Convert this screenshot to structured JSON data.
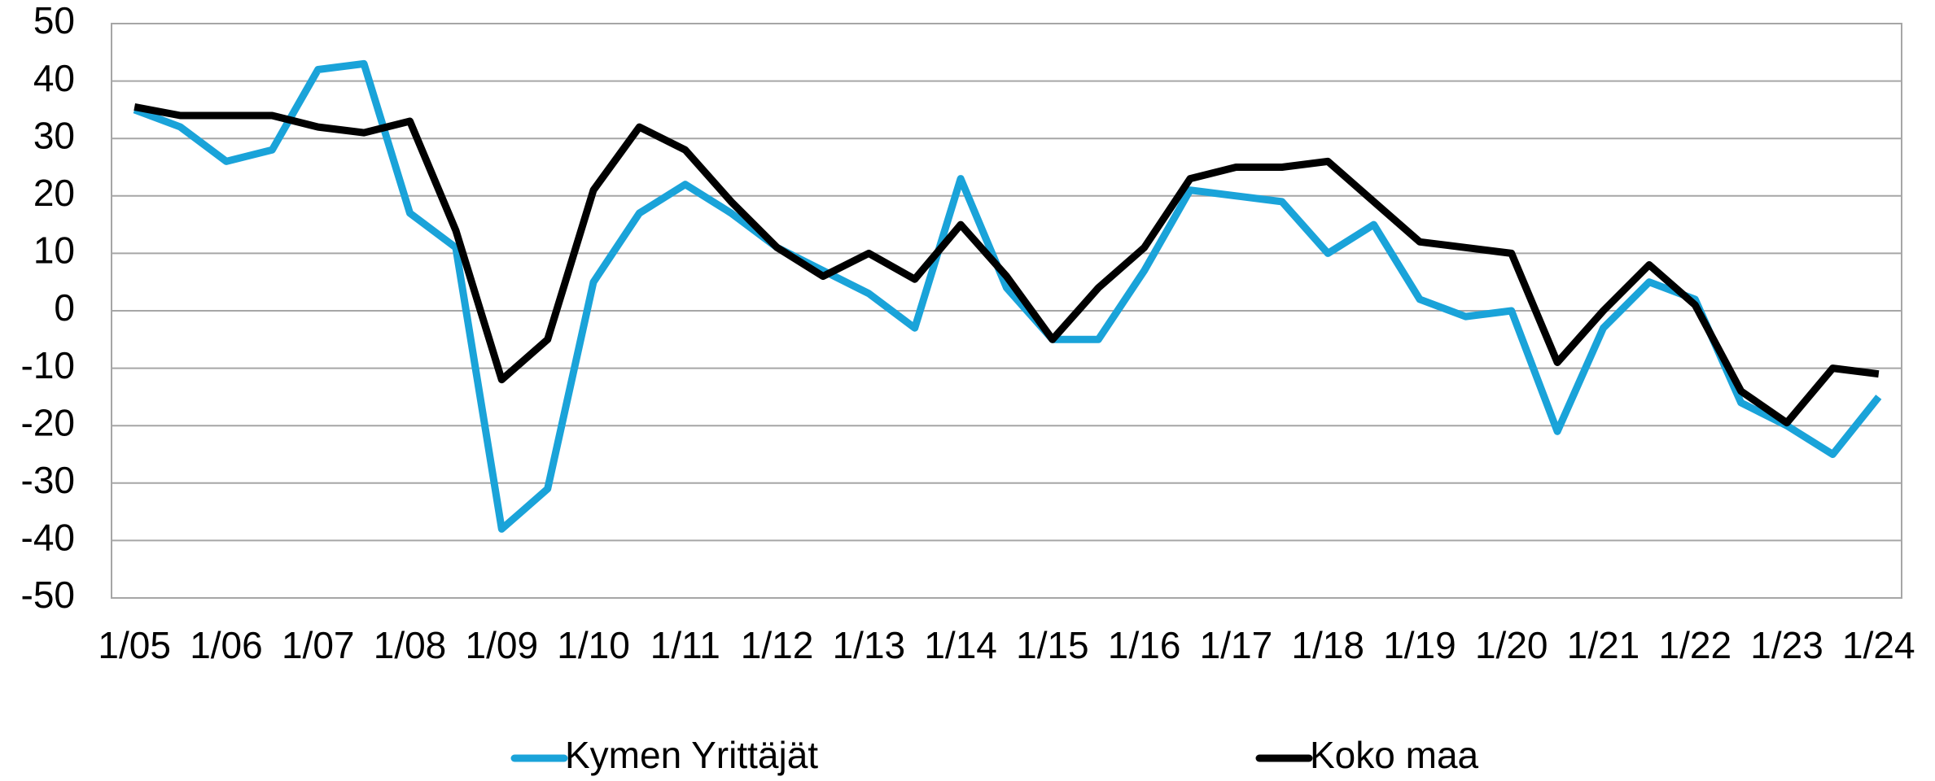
{
  "chart_data": {
    "type": "line",
    "categories": [
      "1/05",
      null,
      "1/06",
      null,
      "1/07",
      null,
      "1/08",
      null,
      "1/09",
      null,
      "1/10",
      null,
      "1/11",
      null,
      "1/12",
      null,
      "1/13",
      null,
      "1/14",
      null,
      "1/15",
      null,
      "1/16",
      null,
      "1/17",
      null,
      "1/18",
      null,
      "1/19",
      null,
      "1/20",
      null,
      "1/21",
      null,
      "1/22",
      null,
      "1/23",
      null,
      "1/24"
    ],
    "series": [
      {
        "name": "Kymen Yrittäjät",
        "color": "#1aa3d9",
        "values": [
          35,
          32,
          26,
          28,
          42,
          43,
          17,
          11,
          -38,
          -31,
          5,
          17,
          22,
          17,
          11,
          7,
          3,
          -3,
          23,
          4,
          -5,
          -5,
          7,
          21,
          20,
          19,
          10,
          15,
          2,
          -1,
          0,
          -21,
          -3,
          5,
          2,
          -16,
          -20,
          -25,
          -15
        ]
      },
      {
        "name": "Koko maa",
        "color": "#000000",
        "values": [
          35.5,
          34,
          34,
          34,
          32,
          31,
          33,
          14,
          -12,
          -5,
          21,
          32,
          28,
          19,
          11,
          6,
          10,
          5.5,
          15,
          6,
          -5,
          4,
          11,
          23,
          25,
          25,
          26,
          19,
          12,
          11,
          10,
          -9,
          0,
          8,
          1,
          -14,
          -19.5,
          -10,
          -11
        ]
      }
    ],
    "ylim": [
      -50,
      50
    ],
    "yticks": [
      -50,
      -40,
      -30,
      -20,
      -10,
      0,
      10,
      20,
      30,
      40,
      50
    ],
    "grid": true,
    "legend": "bottom"
  }
}
